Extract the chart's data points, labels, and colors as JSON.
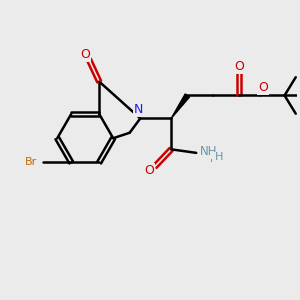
{
  "background_color": "#ebebeb",
  "bond_color": "#000000",
  "bond_width": 1.8,
  "atom_colors": {
    "C": "#000000",
    "N": "#1a1aff",
    "O": "#cc0000",
    "Br": "#cc6600",
    "H": "#6699aa"
  },
  "figsize": [
    3.0,
    3.0
  ],
  "dpi": 100
}
